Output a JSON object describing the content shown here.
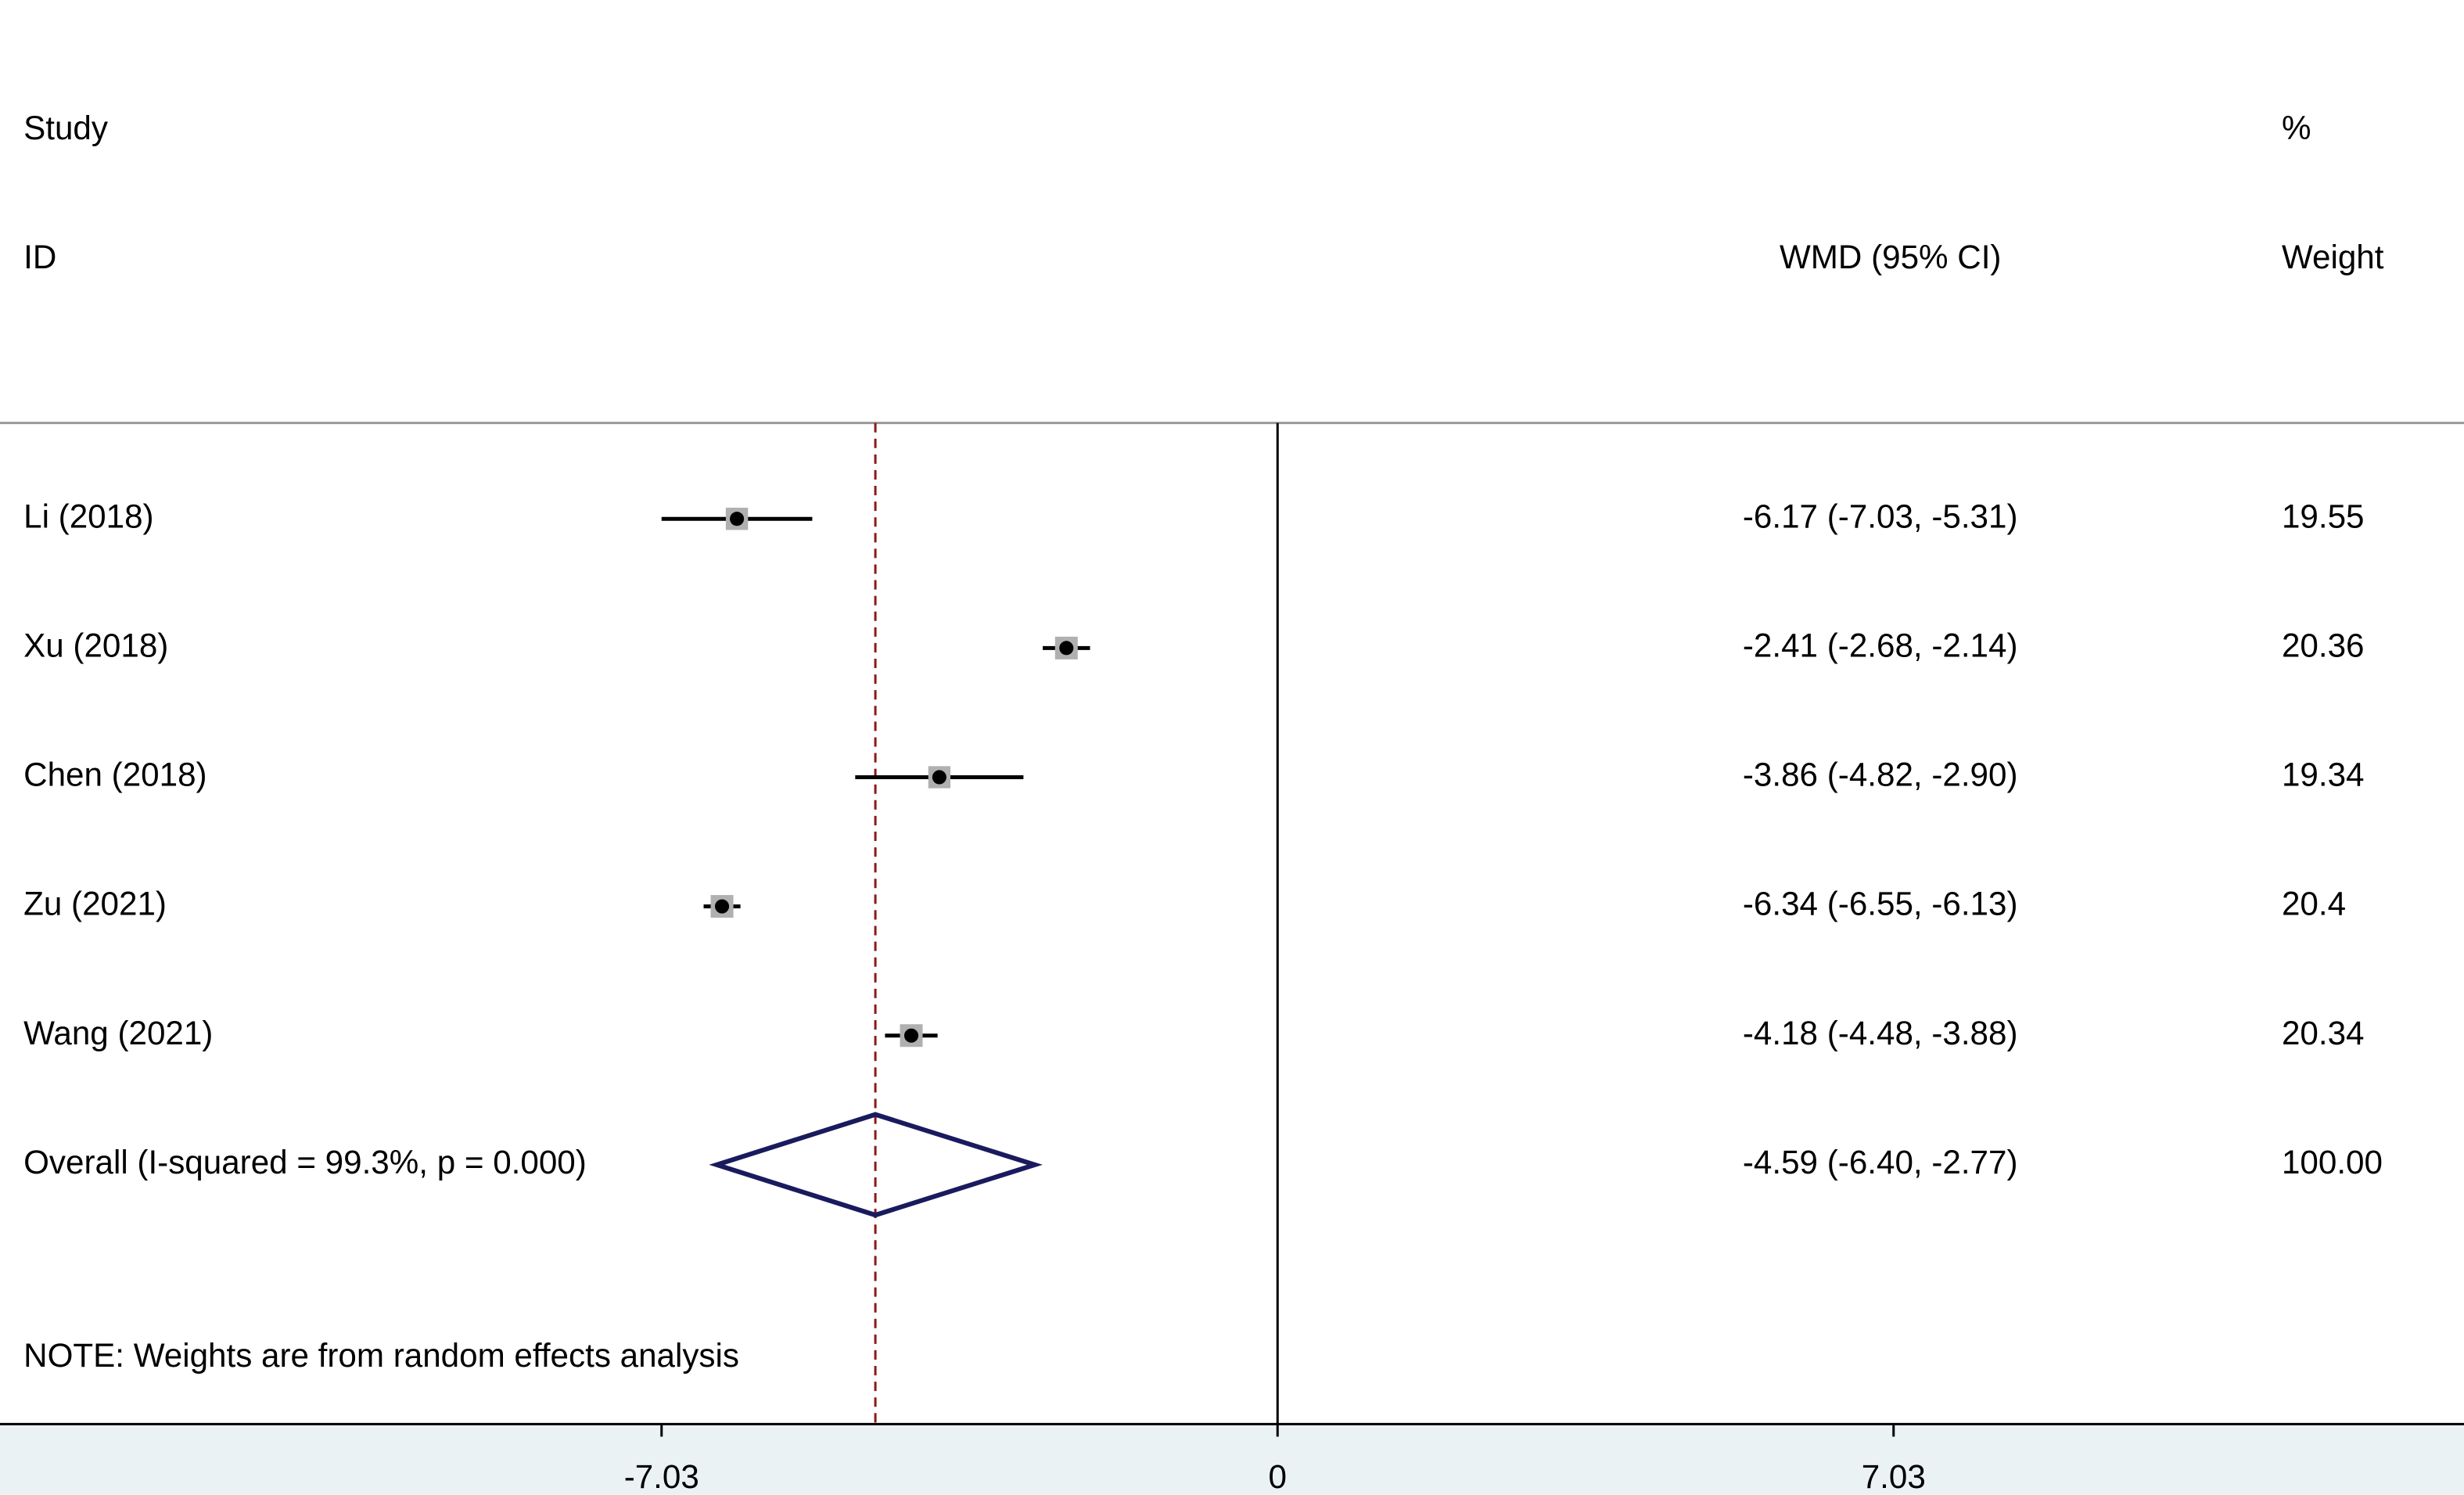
{
  "chart_data": {
    "type": "forest",
    "headers": {
      "study": "Study",
      "id": "ID",
      "percent": "%",
      "weight": "Weight",
      "effect": "WMD (95% CI)"
    },
    "studies": [
      "Li (2018)",
      "Xu (2018)",
      "Chen (2018)",
      "Zu  (2021)",
      "Wang (2021)"
    ],
    "estimates": [
      -6.17,
      -2.41,
      -3.86,
      -6.34,
      -4.18
    ],
    "lower": [
      -7.03,
      -2.68,
      -4.82,
      -6.55,
      -4.48
    ],
    "upper": [
      -5.31,
      -2.14,
      -2.9,
      -6.13,
      -3.88
    ],
    "effect_labels": [
      "-6.17 (-7.03, -5.31)",
      "-2.41 (-2.68, -2.14)",
      "-3.86 (-4.82, -2.90)",
      "-6.34 (-6.55, -6.13)",
      "-4.18 (-4.48, -3.88)"
    ],
    "weights": [
      19.55,
      20.36,
      19.34,
      20.4,
      20.34
    ],
    "overall": {
      "label": "Overall  (I-squared = 99.3%, p = 0.000)",
      "estimate": -4.59,
      "lower": -6.4,
      "upper": -2.77,
      "effect_label": "-4.59 (-6.40, -2.77)",
      "weight_label": "100.00"
    },
    "note": "NOTE: Weights are from random effects analysis",
    "xlim": [
      -14.58,
      13.54
    ],
    "xticks": [
      -7.03,
      0,
      7.03
    ]
  }
}
